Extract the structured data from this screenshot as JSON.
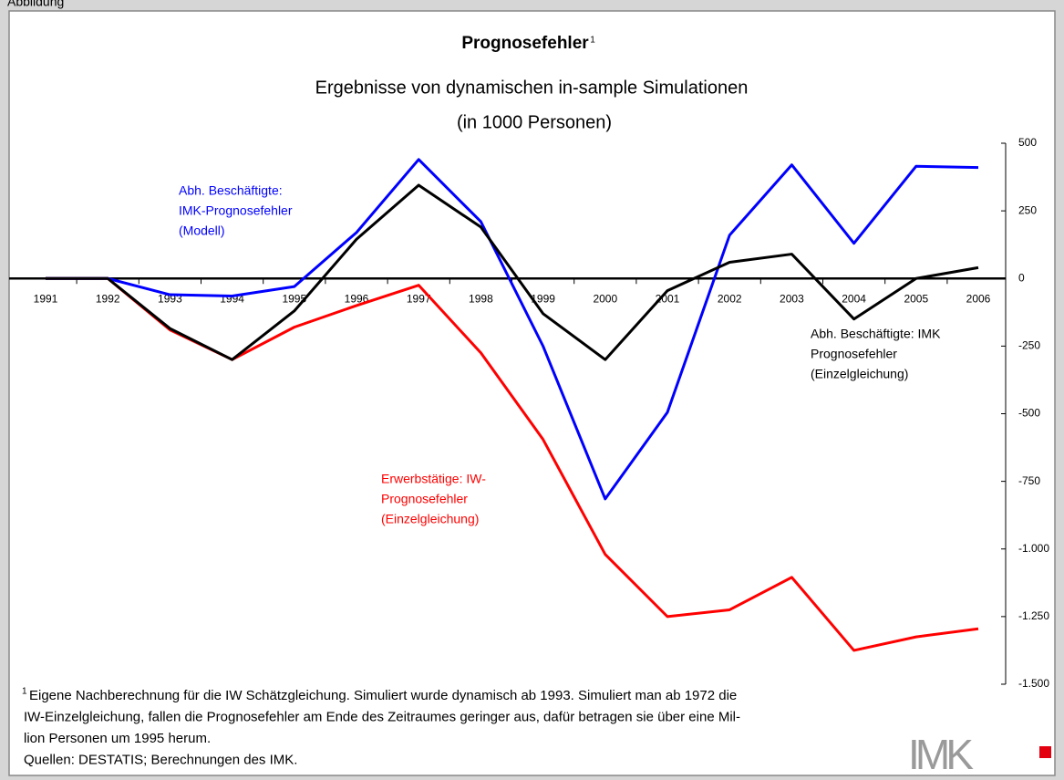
{
  "header": "Abbildung",
  "chart_data": {
    "type": "line",
    "title": "Prognosefehler",
    "title_note": "1",
    "subtitle": "Ergebnisse von dynamischen in-sample Simulationen",
    "unit": "(in 1000 Personen)",
    "categories": [
      "1991",
      "1992",
      "1993",
      "1994",
      "1995",
      "1996",
      "1997",
      "1998",
      "1999",
      "2000",
      "2001",
      "2002",
      "2003",
      "2004",
      "2005",
      "2006"
    ],
    "series": [
      {
        "label": [
          "Erwerbstätige: IW-",
          "Prognosefehler",
          "(Einzelgleichung)"
        ],
        "color": "#ff0000",
        "values": [
          0,
          0,
          -190,
          -300,
          -180,
          -100,
          -25,
          -275,
          -595,
          -1020,
          -1250,
          -1225,
          -1105,
          -1375,
          -1325,
          -1295
        ]
      },
      {
        "label": [
          "Abh. Beschäftigte:",
          "IMK-Prognosefehler",
          "(Modell)"
        ],
        "color": "#0000ff",
        "values": [
          0,
          0,
          -60,
          -65,
          -30,
          170,
          440,
          210,
          -250,
          -815,
          -495,
          160,
          420,
          130,
          415,
          410
        ]
      },
      {
        "label": [
          "Abh. Beschäftigte: IMK",
          "Prognosefehler",
          "(Einzelgleichung)"
        ],
        "color": "#000000",
        "values": [
          0,
          0,
          -185,
          -300,
          -120,
          145,
          345,
          190,
          -130,
          -300,
          -45,
          60,
          90,
          -150,
          0,
          40
        ]
      }
    ],
    "ylim": [
      -1500,
      500
    ],
    "yticks": [
      {
        "value": -1500,
        "label": "-1.500"
      },
      {
        "value": -1250,
        "label": "-1.250"
      },
      {
        "value": -1000,
        "label": "-1.000"
      },
      -750,
      -500,
      -250,
      0,
      250,
      500
    ],
    "axis_side": "right"
  },
  "footnote": {
    "marker": "1",
    "lines": [
      "Eigene Nachberechnung für die IW Schätzgleichung. Simuliert wurde dynamisch ab 1993. Simuliert man ab 1972 die",
      "IW-Einzelgleichung, fallen die Prognosefehler am Ende des Zeitraumes geringer aus, dafür betragen sie über eine Mil-",
      "lion Personen um 1995 herum.",
      "Quellen: DESTATIS; Berechnungen des IMK."
    ]
  },
  "logo": "IMK"
}
